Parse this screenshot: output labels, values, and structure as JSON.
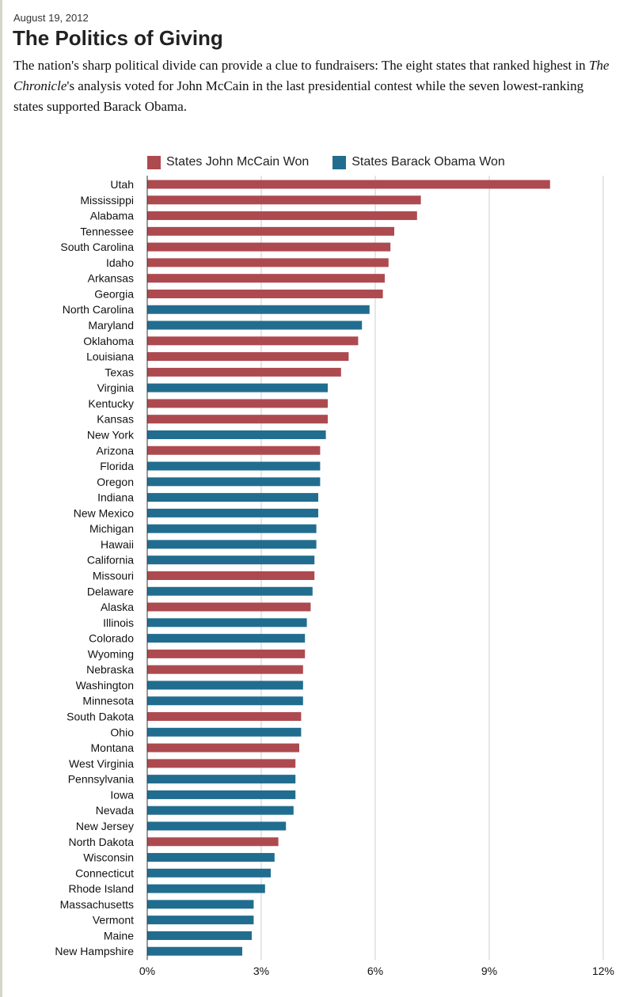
{
  "header": {
    "date": "August 19, 2012",
    "title": "The Politics of Giving",
    "intro_part1": "The nation's sharp political divide can provide a clue to fundraisers: The eight states that ranked highest in ",
    "intro_emph": "The Chronicle",
    "intro_part2": "'s analysis voted for John McCain in the last presidential contest while the seven lowest-ranking states supported Barack Obama."
  },
  "legend": {
    "mccain_label": "States John McCain Won",
    "obama_label": "States Barack Obama Won"
  },
  "colors": {
    "mccain": "#ad4a50",
    "obama": "#216d8f",
    "grid": "#cccccc",
    "axis": "#333333"
  },
  "chart_data": {
    "type": "bar",
    "orientation": "horizontal",
    "title": "The Politics of Giving",
    "xlabel": "",
    "ylabel": "",
    "xlim": [
      0,
      12
    ],
    "x_ticks": [
      "0%",
      "3%",
      "6%",
      "9%",
      "12%"
    ],
    "x_tick_values": [
      0,
      3,
      6,
      9,
      12
    ],
    "grid": true,
    "legend_position": "top-left",
    "categories": [
      "Utah",
      "Mississippi",
      "Alabama",
      "Tennessee",
      "South Carolina",
      "Idaho",
      "Arkansas",
      "Georgia",
      "North Carolina",
      "Maryland",
      "Oklahoma",
      "Louisiana",
      "Texas",
      "Virginia",
      "Kentucky",
      "Kansas",
      "New York",
      "Arizona",
      "Florida",
      "Oregon",
      "Indiana",
      "New Mexico",
      "Michigan",
      "Hawaii",
      "California",
      "Missouri",
      "Delaware",
      "Alaska",
      "Illinois",
      "Colorado",
      "Wyoming",
      "Nebraska",
      "Washington",
      "Minnesota",
      "South Dakota",
      "Ohio",
      "Montana",
      "West Virginia",
      "Pennsylvania",
      "Iowa",
      "Nevada",
      "New Jersey",
      "North Dakota",
      "Wisconsin",
      "Connecticut",
      "Rhode Island",
      "Massachusetts",
      "Vermont",
      "Maine",
      "New Hampshire"
    ],
    "values": [
      10.6,
      7.2,
      7.1,
      6.5,
      6.4,
      6.35,
      6.25,
      6.2,
      5.85,
      5.65,
      5.55,
      5.3,
      5.1,
      4.75,
      4.75,
      4.75,
      4.7,
      4.55,
      4.55,
      4.55,
      4.5,
      4.5,
      4.45,
      4.45,
      4.4,
      4.4,
      4.35,
      4.3,
      4.2,
      4.15,
      4.15,
      4.1,
      4.1,
      4.1,
      4.05,
      4.05,
      4.0,
      3.9,
      3.9,
      3.9,
      3.85,
      3.65,
      3.45,
      3.35,
      3.25,
      3.1,
      2.8,
      2.8,
      2.75,
      2.5
    ],
    "winner": [
      "McCain",
      "McCain",
      "McCain",
      "McCain",
      "McCain",
      "McCain",
      "McCain",
      "McCain",
      "Obama",
      "Obama",
      "McCain",
      "McCain",
      "McCain",
      "Obama",
      "McCain",
      "McCain",
      "Obama",
      "McCain",
      "Obama",
      "Obama",
      "Obama",
      "Obama",
      "Obama",
      "Obama",
      "Obama",
      "McCain",
      "Obama",
      "McCain",
      "Obama",
      "Obama",
      "McCain",
      "McCain",
      "Obama",
      "Obama",
      "McCain",
      "Obama",
      "McCain",
      "McCain",
      "Obama",
      "Obama",
      "Obama",
      "Obama",
      "McCain",
      "Obama",
      "Obama",
      "Obama",
      "Obama",
      "Obama",
      "Obama",
      "Obama"
    ],
    "series": [
      {
        "name": "States John McCain Won",
        "key": "McCain"
      },
      {
        "name": "States Barack Obama Won",
        "key": "Obama"
      }
    ]
  }
}
